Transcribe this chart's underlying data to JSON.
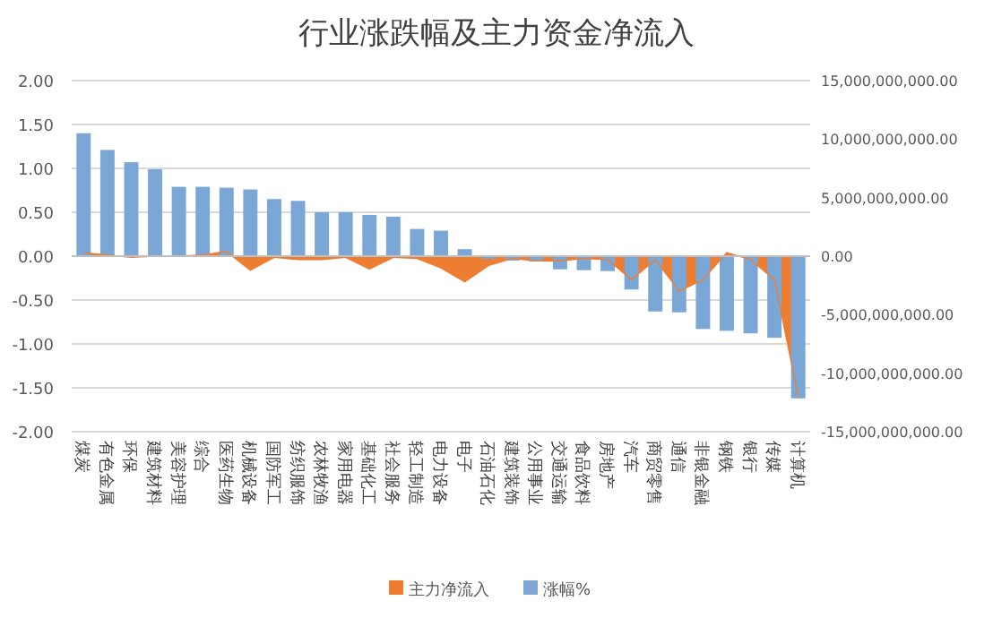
{
  "chart_data": {
    "type": "bar",
    "title": "行业涨跌幅及主力资金净流入",
    "categories": [
      "煤炭",
      "有色金属",
      "环保",
      "建筑材料",
      "美容护理",
      "综合",
      "医药生物",
      "机械设备",
      "国防军工",
      "纺织服饰",
      "农林牧渔",
      "家用电器",
      "基础化工",
      "社会服务",
      "轻工制造",
      "电力设备",
      "电子",
      "石油石化",
      "建筑装饰",
      "公用事业",
      "交通运输",
      "食品饮料",
      "房地产",
      "汽车",
      "商贸零售",
      "通信",
      "非银金融",
      "钢铁",
      "银行",
      "传媒",
      "计算机"
    ],
    "series": [
      {
        "name": "主力净流入",
        "type": "area",
        "axis": "y2",
        "color": "#ed7d31",
        "values": [
          300000000,
          100000000,
          -100000000,
          0,
          0,
          100000000,
          400000000,
          -1200000000,
          -100000000,
          -300000000,
          -300000000,
          -100000000,
          -1100000000,
          -100000000,
          -200000000,
          -1000000000,
          -2200000000,
          -800000000,
          -200000000,
          -400000000,
          -400000000,
          -200000000,
          -300000000,
          -2000000000,
          -300000000,
          -3000000000,
          -2000000000,
          300000000,
          -300000000,
          -2000000000,
          -12000000000
        ]
      },
      {
        "name": "涨幅%",
        "color": "#7ba7d6",
        "values": [
          1.4,
          1.21,
          1.07,
          0.99,
          0.79,
          0.79,
          0.78,
          0.76,
          0.65,
          0.63,
          0.5,
          0.5,
          0.47,
          0.45,
          0.31,
          0.29,
          0.08,
          -0.03,
          -0.05,
          -0.06,
          -0.15,
          -0.16,
          -0.17,
          -0.38,
          -0.63,
          -0.64,
          -0.83,
          -0.85,
          -0.88,
          -0.93,
          -1.62
        ]
      }
    ],
    "ylim": [
      -2,
      2
    ],
    "yticks": [
      {
        "value": -2,
        "label": "-2.00"
      },
      {
        "value": -1.5,
        "label": "-1.50"
      },
      {
        "value": -1,
        "label": "-1.00"
      },
      {
        "value": -0.5,
        "label": "-0.50"
      },
      {
        "value": 0,
        "label": "0.00"
      },
      {
        "value": 0.5,
        "label": "0.50"
      },
      {
        "value": 1,
        "label": "1.00"
      },
      {
        "value": 1.5,
        "label": "1.50"
      },
      {
        "value": 2,
        "label": "2.00"
      }
    ],
    "y2lim": [
      -15000000000,
      15000000000
    ],
    "y2ticks": [
      {
        "value": -15000000000,
        "label": "-15,000,000,000.00"
      },
      {
        "value": -10000000000,
        "label": "-10,000,000,000.00"
      },
      {
        "value": -5000000000,
        "label": "-5,000,000,000.00"
      },
      {
        "value": 0,
        "label": "0.00"
      },
      {
        "value": 5000000000,
        "label": "5,000,000,000.00"
      },
      {
        "value": 10000000000,
        "label": "10,000,000,000.00"
      },
      {
        "value": 15000000000,
        "label": "15,000,000,000.00"
      }
    ],
    "grid": "y",
    "legend": "bottom"
  }
}
